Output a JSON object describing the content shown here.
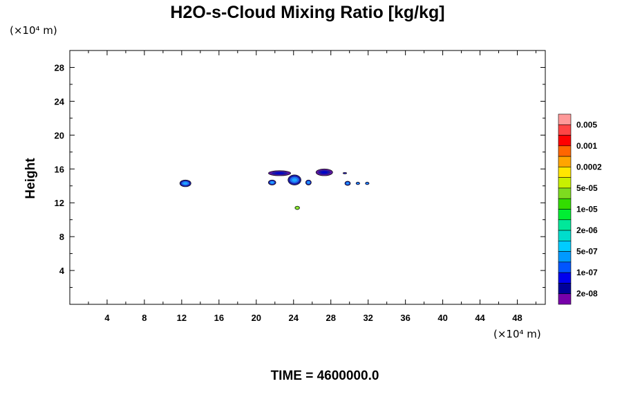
{
  "chart_data": {
    "type": "contour",
    "title": "H2O-s-Cloud Mixing Ratio [kg/kg]",
    "xlabel": "",
    "ylabel": "Height",
    "x_unit": "(×10⁴ m)",
    "y_unit": "(×10⁴ m)",
    "xlim": [
      0,
      51
    ],
    "ylim": [
      0,
      30
    ],
    "x_ticks": [
      4,
      8,
      12,
      16,
      20,
      24,
      28,
      32,
      36,
      40,
      44,
      48
    ],
    "y_ticks": [
      4,
      8,
      12,
      16,
      20,
      24,
      28
    ],
    "grid": false,
    "colorbar": {
      "labels": [
        "0.005",
        "0.001",
        "0.0002",
        "5e-05",
        "1e-05",
        "2e-06",
        "5e-07",
        "1e-07",
        "2e-08"
      ],
      "colors": [
        "#ff9999",
        "#ff4444",
        "#ff0000",
        "#ff6600",
        "#ffa500",
        "#ffe600",
        "#c8f000",
        "#7ddc1f",
        "#33dd00",
        "#00ee33",
        "#00e89a",
        "#00ddcc",
        "#00ccff",
        "#0099ff",
        "#0055ff",
        "#0000ee",
        "#000099",
        "#7700aa"
      ]
    },
    "cloud_features": [
      {
        "x": 12.4,
        "y": 14.3,
        "rx": 0.6,
        "ry": 0.4,
        "level": "1e-07"
      },
      {
        "x": 22.5,
        "y": 15.5,
        "rx": 1.2,
        "ry": 0.3,
        "level": "2e-08"
      },
      {
        "x": 21.7,
        "y": 14.4,
        "rx": 0.4,
        "ry": 0.3,
        "level": "1e-07"
      },
      {
        "x": 24.1,
        "y": 14.7,
        "rx": 0.7,
        "ry": 0.6,
        "level": "1e-07"
      },
      {
        "x": 25.6,
        "y": 14.4,
        "rx": 0.3,
        "ry": 0.3,
        "level": "1e-07"
      },
      {
        "x": 27.3,
        "y": 15.6,
        "rx": 0.9,
        "ry": 0.4,
        "level": "2e-08"
      },
      {
        "x": 29.5,
        "y": 15.5,
        "rx": 0.2,
        "ry": 0.08,
        "level": "2e-08"
      },
      {
        "x": 29.8,
        "y": 14.3,
        "rx": 0.3,
        "ry": 0.25,
        "level": "1e-07"
      },
      {
        "x": 30.9,
        "y": 14.3,
        "rx": 0.2,
        "ry": 0.15,
        "level": "1e-07"
      },
      {
        "x": 31.9,
        "y": 14.3,
        "rx": 0.2,
        "ry": 0.15,
        "level": "1e-07"
      },
      {
        "x": 24.4,
        "y": 11.4,
        "rx": 0.25,
        "ry": 0.2,
        "level": "1e-05"
      }
    ]
  },
  "time_label": "TIME = 4600000.0"
}
